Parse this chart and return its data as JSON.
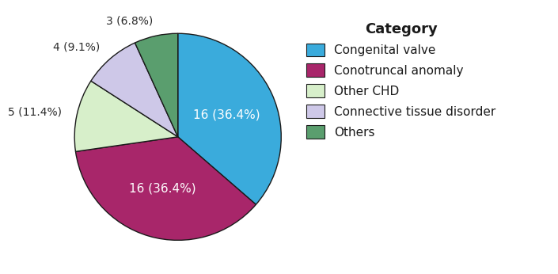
{
  "categories": [
    "Congenital valve",
    "Conotruncal anomaly",
    "Other CHD",
    "Connective tissue disorder",
    "Others"
  ],
  "values": [
    16,
    16,
    5,
    4,
    3
  ],
  "percentages": [
    "36.4%",
    "36.4%",
    "11.4%",
    "9.1%",
    "6.8%"
  ],
  "colors": [
    "#3AABDC",
    "#A8266A",
    "#D7EFCA",
    "#CEC8E8",
    "#5A9E6E"
  ],
  "edge_color": "#1a1a1a",
  "legend_title": "Category",
  "legend_title_fontsize": 13,
  "legend_fontsize": 11,
  "label_fontsize_inside": 11,
  "label_fontsize_outside": 10,
  "inside_labels": [
    true,
    true,
    false,
    false,
    false
  ],
  "start_angle": 90,
  "text_color": "#2a2a2a"
}
